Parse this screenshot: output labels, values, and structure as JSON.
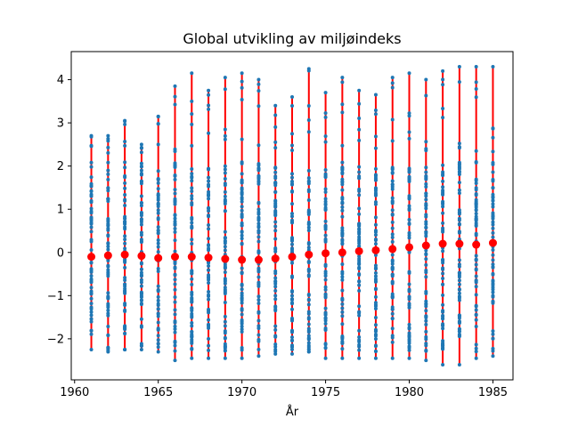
{
  "chart_data": {
    "type": "scatter",
    "title": "Global utvikling av miljøindeks",
    "xlabel": "År",
    "ylabel": "",
    "xlim": [
      1959.8,
      1986.2
    ],
    "ylim": [
      -2.95,
      4.65
    ],
    "xticks": [
      1960,
      1965,
      1970,
      1975,
      1980,
      1985
    ],
    "yticks": [
      -2,
      -1,
      0,
      1,
      2,
      3,
      4
    ],
    "x": [
      1961,
      1962,
      1963,
      1964,
      1965,
      1966,
      1967,
      1968,
      1969,
      1970,
      1971,
      1972,
      1973,
      1974,
      1975,
      1976,
      1977,
      1978,
      1979,
      1980,
      1981,
      1982,
      1983,
      1984,
      1985
    ],
    "series": [
      {
        "kind": "range",
        "min": [
          -2.25,
          -2.3,
          -2.25,
          -2.25,
          -2.3,
          -2.5,
          -2.45,
          -2.45,
          -2.45,
          -2.45,
          -2.4,
          -2.35,
          -2.35,
          -2.3,
          -2.45,
          -2.45,
          -2.45,
          -2.45,
          -2.45,
          -2.45,
          -2.5,
          -2.6,
          -2.6,
          -2.45,
          -2.4
        ],
        "max": [
          2.7,
          2.7,
          3.05,
          2.5,
          3.15,
          3.85,
          4.15,
          3.75,
          4.05,
          4.15,
          4.0,
          3.4,
          3.6,
          4.25,
          3.7,
          4.05,
          3.75,
          3.65,
          4.05,
          4.15,
          4.0,
          4.2,
          4.3,
          4.3,
          4.3
        ]
      },
      {
        "kind": "mean",
        "values": [
          -0.1,
          -0.07,
          -0.05,
          -0.08,
          -0.13,
          -0.1,
          -0.1,
          -0.12,
          -0.15,
          -0.17,
          -0.17,
          -0.14,
          -0.1,
          -0.05,
          -0.02,
          0.0,
          0.03,
          0.05,
          0.08,
          0.12,
          0.16,
          0.2,
          0.2,
          0.18,
          0.22
        ]
      }
    ],
    "grid": false,
    "legend": "none",
    "colors": {
      "range_line": "#ff0000",
      "mean_marker": "#ff0000",
      "observations": "#1f77b4",
      "axis": "#000000"
    }
  }
}
